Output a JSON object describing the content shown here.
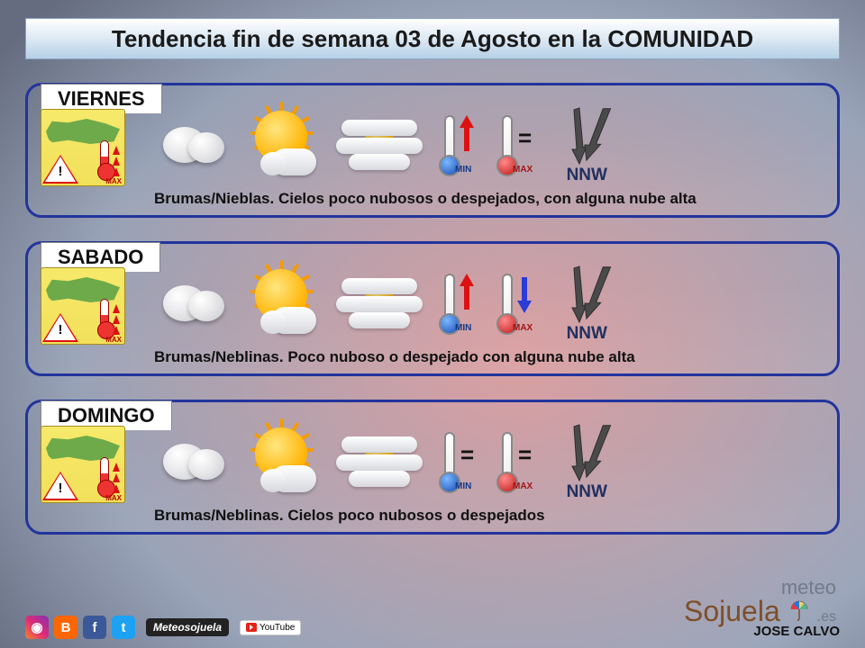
{
  "title": "Tendencia fin de semana 03 de Agosto en la COMUNIDAD",
  "colors": {
    "card_border": "#22349c",
    "title_grad_top": "#ffffff",
    "title_grad_bottom": "#b6d0e6",
    "min_bulb": "#1a4db3",
    "max_bulb": "#c21818",
    "arrow_up": "#d11111",
    "arrow_down": "#2a3bd6",
    "sun": "#ffb300",
    "wind_arrow": "#4a4a4a"
  },
  "days": [
    {
      "name": "VIERNES",
      "desc": "Brumas/Nieblas. Cielos poco nubosos o despejados, con alguna nube alta",
      "min_trend": "up",
      "max_trend": "eq",
      "wind_dir": "NNW"
    },
    {
      "name": "SABADO",
      "desc": "Brumas/Neblinas. Poco nuboso o despejado con alguna nube alta",
      "min_trend": "up",
      "max_trend": "down",
      "wind_dir": "NNW"
    },
    {
      "name": "DOMINGO",
      "desc": "Brumas/Neblinas. Cielos poco nubosos o despejados",
      "min_trend": "eq",
      "max_trend": "eq",
      "wind_dir": "NNW"
    }
  ],
  "thermo_labels": {
    "min": "MIN",
    "max": "MAX"
  },
  "footer": {
    "handle": "Meteosojuela",
    "yt": "YouTube",
    "author": "JOSE CALVO",
    "logo_line1": "meteo",
    "logo_line2": "Sojuela",
    "logo_tld": ".es"
  }
}
